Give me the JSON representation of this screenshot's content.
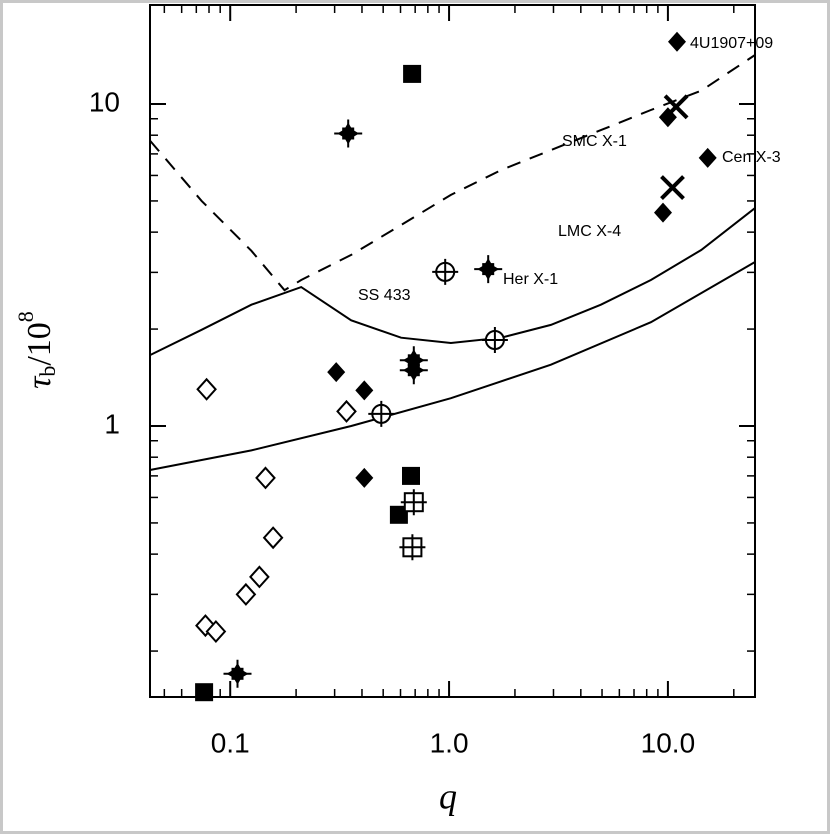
{
  "chart_data": {
    "type": "scatter",
    "xlabel": "q",
    "ylabel": {
      "symbol": "τ",
      "sub": "b",
      "mid": "/10",
      "sup": "8"
    },
    "log_x": true,
    "log_y": true,
    "xlim": [
      0.043,
      25
    ],
    "ylim": [
      0.144,
      20.3
    ],
    "xticks": [
      0.1,
      {
        "value": 1,
        "label": "1.0"
      },
      {
        "value": 10,
        "label": "10.0"
      }
    ],
    "yticks": [
      1,
      10
    ],
    "xminor": [
      0.05,
      0.06,
      0.07,
      0.08,
      0.09,
      0.2,
      0.3,
      0.4,
      0.5,
      0.6,
      0.7,
      0.8,
      0.9,
      2,
      3,
      4,
      5,
      6,
      7,
      8,
      9,
      20
    ],
    "yminor": [
      0.2,
      0.3,
      0.4,
      0.5,
      0.6,
      0.7,
      0.8,
      0.9,
      2,
      3,
      4,
      5,
      6,
      7,
      8,
      9
    ],
    "color": "#000000",
    "series": [
      {
        "marker": "filled-square",
        "x": [
          0.678,
          0.67,
          0.59,
          0.076
        ],
        "values": [
          12.4,
          0.7,
          0.53,
          0.149
        ]
      },
      {
        "marker": "filled-diamond",
        "x": [
          11.0,
          10.0,
          15.2,
          9.5,
          0.305,
          0.41,
          0.41
        ],
        "values": [
          15.6,
          9.1,
          6.8,
          4.6,
          1.47,
          1.29,
          0.69
        ]
      },
      {
        "marker": "open-diamond",
        "x": [
          0.078,
          0.34,
          0.145,
          0.157,
          0.136,
          0.118,
          0.077,
          0.086
        ],
        "values": [
          1.3,
          1.11,
          0.69,
          0.45,
          0.34,
          0.3,
          0.24,
          0.23
        ]
      },
      {
        "marker": "filled-cross",
        "x": [
          0.346,
          1.51,
          0.69,
          0.69,
          0.108
        ],
        "values": [
          8.1,
          3.07,
          1.6,
          1.49,
          0.17
        ]
      },
      {
        "marker": "circle-plus",
        "x": [
          0.96,
          1.62,
          0.49
        ],
        "values": [
          3.01,
          1.85,
          1.09
        ]
      },
      {
        "marker": "square-plus",
        "x": [
          0.69,
          0.68
        ],
        "values": [
          0.58,
          0.42
        ]
      },
      {
        "marker": "x",
        "x": [
          10.9,
          10.5
        ],
        "values": [
          9.8,
          5.5
        ]
      }
    ],
    "curves": [
      {
        "style": "dashed",
        "x": [
          0.043,
          0.074,
          0.125,
          0.177,
          0.211,
          0.357,
          0.604,
          1.02,
          1.73,
          2.92,
          4.94,
          8.36,
          14.2,
          25
        ],
        "values": [
          7.7,
          5.0,
          3.5,
          2.64,
          2.84,
          3.4,
          4.21,
          5.22,
          6.24,
          7.19,
          8.3,
          9.58,
          11.0,
          14.2
        ]
      },
      {
        "style": "solid",
        "x": [
          0.043,
          0.074,
          0.125,
          0.211,
          0.357,
          0.604,
          1.02,
          1.73,
          2.92,
          4.94,
          8.36,
          14.2,
          25
        ],
        "values": [
          1.66,
          1.99,
          2.38,
          2.7,
          2.13,
          1.88,
          1.81,
          1.88,
          2.06,
          2.38,
          2.84,
          3.52,
          4.75
        ]
      },
      {
        "style": "solid",
        "x": [
          0.043,
          0.125,
          0.357,
          1.02,
          2.92,
          8.36,
          25
        ],
        "values": [
          0.73,
          0.84,
          1.0,
          1.22,
          1.55,
          2.1,
          3.23
        ]
      }
    ],
    "annotations": [
      "4U1907+09",
      "SMC X-1",
      "Cen X-3",
      "LMC X-4",
      "Her X-1",
      "SS 433"
    ]
  }
}
